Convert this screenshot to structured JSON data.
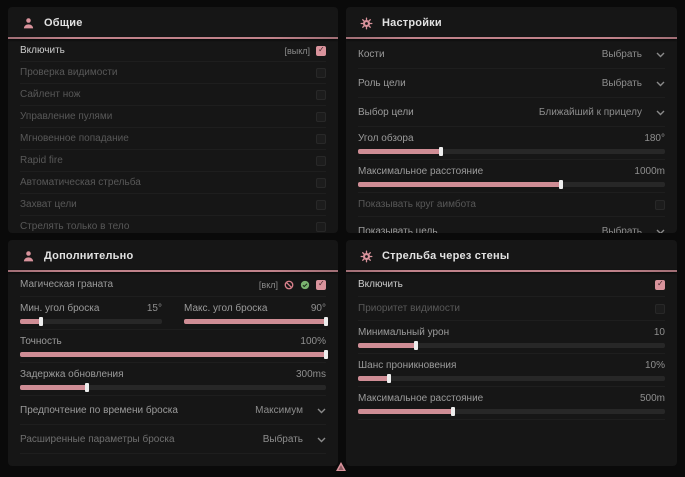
{
  "colors": {
    "accent": "#d9939c",
    "panel_bg": "#161616",
    "page_bg": "#0a0a0a",
    "slider_fill": "#cf8d95"
  },
  "general": {
    "title": "Общие",
    "enable_row": {
      "label": "Включить",
      "tag": "[выкл]",
      "checked": true
    },
    "items": [
      "Проверка видимости",
      "Сайлент нож",
      "Управление пулями",
      "Мгновенное попадание",
      "Rapid fire",
      "Автоматическая стрельба",
      "Захват цели",
      "Стрелять только в тело"
    ]
  },
  "settings": {
    "title": "Настройки",
    "bones": {
      "label": "Кости",
      "value": "Выбрать"
    },
    "target_role": {
      "label": "Роль цели",
      "value": "Выбрать"
    },
    "target_choice": {
      "label": "Выбор цели",
      "value": "Ближайший к прицелу"
    },
    "fov": {
      "label": "Угол обзора",
      "value": "180°",
      "percent": 27
    },
    "max_distance": {
      "label": "Максимальное расстояние",
      "value": "1000m",
      "percent": 66
    },
    "show_aimbot_radius": {
      "label": "Показывать круг аимбота",
      "checked": false
    },
    "show_target": {
      "label": "Показывать цель",
      "value": "Выбрать"
    }
  },
  "additional": {
    "title": "Дополнительно",
    "magic_grenade": {
      "label": "Магическая граната",
      "tag": "[вкл]",
      "checked": true
    },
    "min_throw_angle": {
      "label": "Мин. угол броска",
      "value": "15°",
      "percent": 15
    },
    "max_throw_angle": {
      "label": "Макс. угол броска",
      "value": "90°",
      "percent": 100
    },
    "accuracy": {
      "label": "Точность",
      "value": "100%",
      "percent": 100
    },
    "update_delay": {
      "label": "Задержка обновления",
      "value": "300ms",
      "percent": 22
    },
    "throw_time_pref": {
      "label": "Предпочтение по времени броска",
      "value": "Максимум"
    },
    "advanced_throw": {
      "label": "Расширенные параметры броска",
      "value": "Выбрать"
    }
  },
  "wallbang": {
    "title": "Стрельба через стены",
    "enable": {
      "label": "Включить",
      "checked": true
    },
    "visibility_priority": {
      "label": "Приоритет видимости",
      "checked": false
    },
    "min_damage": {
      "label": "Минимальный урон",
      "value": "10",
      "percent": 19
    },
    "penetration_chance": {
      "label": "Шанс проникновения",
      "value": "10%",
      "percent": 10
    },
    "max_distance": {
      "label": "Максимальное расстояние",
      "value": "500m",
      "percent": 31
    }
  }
}
